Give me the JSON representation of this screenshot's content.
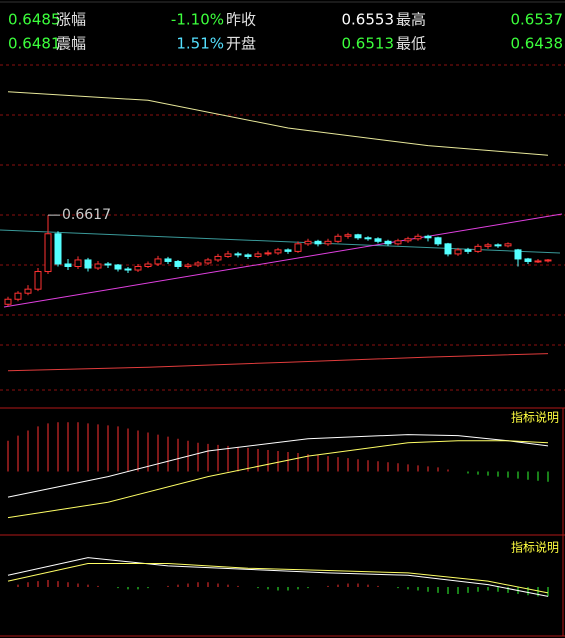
{
  "header": {
    "rows": [
      [
        "0.6485",
        "涨幅",
        "-1.10%",
        "昨收",
        "0.6553",
        "最高",
        "0.6537"
      ],
      [
        "0.6481",
        "震幅",
        "1.51%",
        "开盘",
        "0.6513",
        "最低",
        "0.6438"
      ]
    ]
  },
  "chart_data": [
    {
      "type": "candlestick",
      "ylim": [
        0.624,
        0.6925
      ],
      "annotation_index": 4,
      "up_color": "#ff3232",
      "down_color": "#54ffff",
      "candles": [
        [
          0.644,
          0.6455,
          0.6436,
          0.645
        ],
        [
          0.645,
          0.6466,
          0.6446,
          0.6462
        ],
        [
          0.6462,
          0.6478,
          0.6458,
          0.647
        ],
        [
          0.647,
          0.6512,
          0.6466,
          0.6505
        ],
        [
          0.6505,
          0.6617,
          0.65,
          0.658
        ],
        [
          0.658,
          0.6585,
          0.6515,
          0.652
        ],
        [
          0.652,
          0.653,
          0.6508,
          0.6515
        ],
        [
          0.6515,
          0.6535,
          0.651,
          0.6528
        ],
        [
          0.6528,
          0.6532,
          0.6505,
          0.6512
        ],
        [
          0.6512,
          0.6526,
          0.6508,
          0.652
        ],
        [
          0.652,
          0.6524,
          0.6512,
          0.6518
        ],
        [
          0.6518,
          0.652,
          0.6505,
          0.651
        ],
        [
          0.651,
          0.6514,
          0.6502,
          0.6508
        ],
        [
          0.6508,
          0.652,
          0.6504,
          0.6515
        ],
        [
          0.6515,
          0.6525,
          0.6512,
          0.652
        ],
        [
          0.652,
          0.6536,
          0.6516,
          0.653
        ],
        [
          0.653,
          0.6534,
          0.652,
          0.6525
        ],
        [
          0.6525,
          0.6528,
          0.651,
          0.6515
        ],
        [
          0.6515,
          0.6522,
          0.6511,
          0.6518
        ],
        [
          0.6518,
          0.6526,
          0.6514,
          0.6522
        ],
        [
          0.6522,
          0.6532,
          0.6518,
          0.6528
        ],
        [
          0.6528,
          0.654,
          0.6524,
          0.6535
        ],
        [
          0.6535,
          0.6546,
          0.6532,
          0.654
        ],
        [
          0.654,
          0.6544,
          0.6533,
          0.6538
        ],
        [
          0.6538,
          0.6541,
          0.653,
          0.6535
        ],
        [
          0.6535,
          0.6545,
          0.6532,
          0.654
        ],
        [
          0.654,
          0.6547,
          0.6536,
          0.6542
        ],
        [
          0.6542,
          0.6552,
          0.6538,
          0.6548
        ],
        [
          0.6548,
          0.6551,
          0.654,
          0.6545
        ],
        [
          0.6545,
          0.6565,
          0.6542,
          0.656
        ],
        [
          0.656,
          0.657,
          0.6556,
          0.6565
        ],
        [
          0.6565,
          0.6568,
          0.6555,
          0.656
        ],
        [
          0.656,
          0.657,
          0.6556,
          0.6565
        ],
        [
          0.6565,
          0.658,
          0.6562,
          0.6575
        ],
        [
          0.6575,
          0.6582,
          0.657,
          0.6578
        ],
        [
          0.6578,
          0.658,
          0.6568,
          0.6572
        ],
        [
          0.6572,
          0.6575,
          0.6566,
          0.657
        ],
        [
          0.657,
          0.6573,
          0.6561,
          0.6565
        ],
        [
          0.6565,
          0.6568,
          0.6556,
          0.656
        ],
        [
          0.656,
          0.657,
          0.6557,
          0.6566
        ],
        [
          0.6566,
          0.6574,
          0.6562,
          0.657
        ],
        [
          0.657,
          0.658,
          0.6566,
          0.6575
        ],
        [
          0.6575,
          0.6578,
          0.6565,
          0.6572
        ],
        [
          0.6572,
          0.6574,
          0.6556,
          0.656
        ],
        [
          0.656,
          0.6562,
          0.6535,
          0.654
        ],
        [
          0.654,
          0.6552,
          0.6536,
          0.6548
        ],
        [
          0.6548,
          0.6552,
          0.654,
          0.6545
        ],
        [
          0.6545,
          0.656,
          0.6542,
          0.6555
        ],
        [
          0.6555,
          0.6562,
          0.655,
          0.6558
        ],
        [
          0.6558,
          0.6561,
          0.6552,
          0.6556
        ],
        [
          0.6556,
          0.6563,
          0.6553,
          0.656
        ],
        [
          0.6548,
          0.655,
          0.6515,
          0.653
        ],
        [
          0.653,
          0.6532,
          0.652,
          0.6525
        ],
        [
          0.6525,
          0.653,
          0.6522,
          0.6526
        ],
        [
          0.6526,
          0.653,
          0.6523,
          0.6528
        ]
      ],
      "lines": [
        {
          "color": "#e8e89a",
          "x": [
            0,
            14,
            28,
            42,
            54
          ],
          "values": [
            0.6862,
            0.6845,
            0.679,
            0.6755,
            0.6736
          ]
        },
        {
          "color": "#e03c3c",
          "x": [
            0,
            14,
            28,
            42,
            54
          ],
          "values": [
            0.6308,
            0.6315,
            0.6325,
            0.6335,
            0.6342
          ]
        }
      ]
    },
    {
      "type": "macd",
      "label": "指标说明",
      "ylim": [
        -60,
        60
      ],
      "histogram": [
        30,
        35,
        40,
        44,
        47,
        48,
        48,
        48,
        47,
        46,
        45,
        44,
        42,
        40,
        38,
        36,
        34,
        32,
        30,
        28,
        27,
        26,
        25,
        24,
        23,
        22,
        21,
        20,
        19,
        18,
        17,
        16,
        15,
        14,
        13,
        12,
        11,
        10,
        9,
        8,
        7,
        6,
        5,
        4,
        2,
        0,
        -2,
        -3,
        -4,
        -5,
        -6,
        -7,
        -8,
        -9,
        -10
      ],
      "lines": [
        {
          "color": "#ffffff",
          "x": [
            0,
            10,
            20,
            30,
            40,
            45,
            50,
            54
          ],
          "values": [
            -25,
            -5,
            20,
            32,
            36,
            35,
            30,
            25
          ]
        },
        {
          "color": "#ffff66",
          "x": [
            0,
            10,
            20,
            30,
            40,
            45,
            50,
            54
          ],
          "values": [
            -45,
            -30,
            -5,
            15,
            28,
            30,
            30,
            28
          ]
        }
      ]
    },
    {
      "type": "macd",
      "label": "指标说明",
      "ylim": [
        -40,
        40
      ],
      "histogram": [
        0,
        2,
        4,
        5,
        6,
        5,
        4,
        3,
        2,
        1,
        0,
        -1,
        -2,
        -2,
        -1,
        0,
        1,
        2,
        3,
        4,
        4,
        3,
        2,
        1,
        0,
        -1,
        -2,
        -3,
        -3,
        -2,
        -1,
        0,
        1,
        2,
        3,
        3,
        2,
        1,
        0,
        -1,
        -2,
        -3,
        -4,
        -5,
        -6,
        -6,
        -5,
        -4,
        -3,
        -4,
        -5,
        -6,
        -7,
        -8,
        -8
      ],
      "lines": [
        {
          "color": "#ffffff",
          "x": [
            0,
            8,
            16,
            24,
            32,
            40,
            48,
            54
          ],
          "values": [
            10,
            25,
            18,
            15,
            12,
            10,
            2,
            -8
          ]
        },
        {
          "color": "#ffff66",
          "x": [
            0,
            8,
            16,
            24,
            32,
            40,
            48,
            54
          ],
          "values": [
            5,
            20,
            20,
            16,
            14,
            12,
            5,
            -5
          ]
        }
      ]
    }
  ]
}
